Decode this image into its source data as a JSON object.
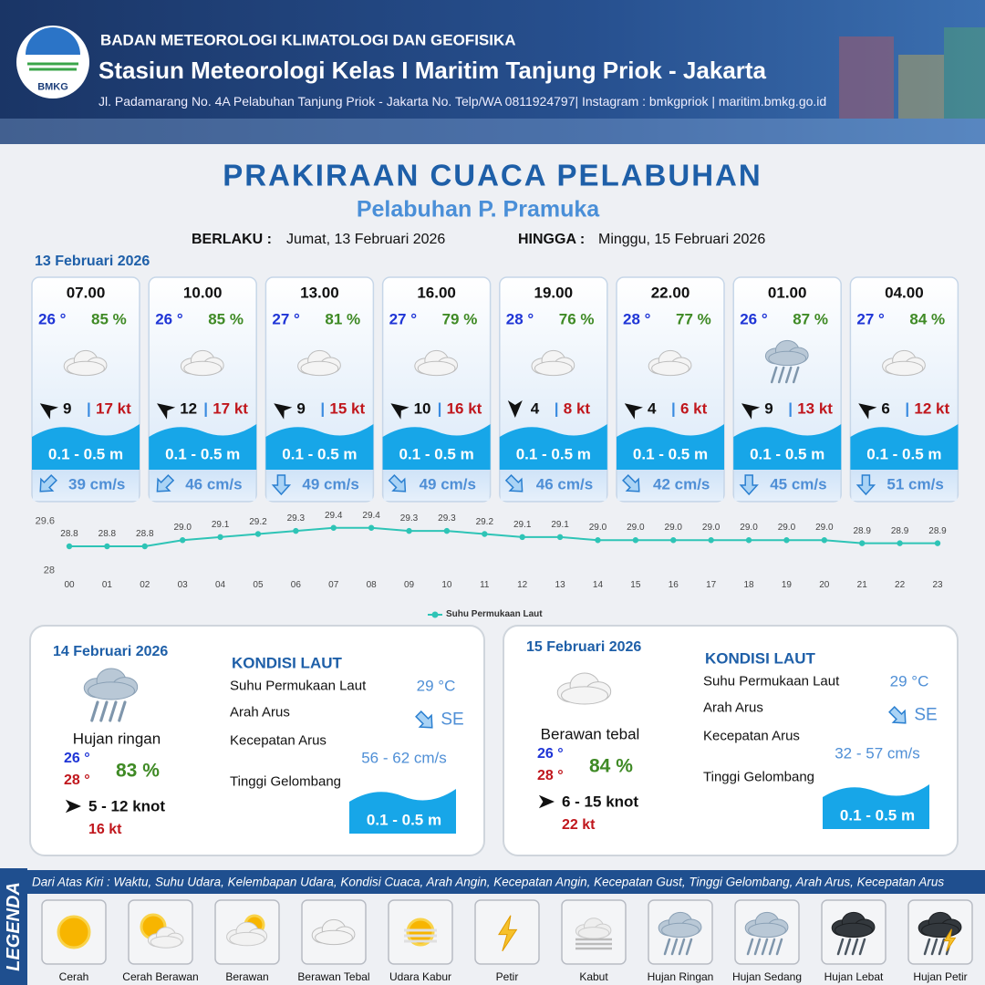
{
  "header": {
    "logo_text": "BMKG",
    "agency": "BADAN METEOROLOGI KLIMATOLOGI DAN GEOFISIKA",
    "station": "Stasiun Meteorologi Kelas I Maritim Tanjung Priok - Jakarta",
    "address": "Jl. Padamarang No. 4A Pelabuhan Tanjung Priok - Jakarta No. Telp/WA 0811924797| Instagram : bmkgpriok | maritim.bmkg.go.id"
  },
  "title": "PRAKIRAAN CUACA PELABUHAN",
  "subtitle": "Pelabuhan P. Pramuka",
  "validity": {
    "from_label": "BERLAKU :",
    "from": "Jumat, 13 Februari 2026",
    "to_label": "HINGGA :",
    "to": "Minggu, 15 Februari 2026"
  },
  "today": {
    "date": "13 Februari 2026",
    "separator": "|",
    "forecasts": [
      {
        "time": "07.00",
        "temperature": "26 °",
        "humidity": "85 %",
        "icon": 3,
        "wind_direction": -145,
        "wind_speed": "9",
        "gust": "17 kt",
        "wave": "0.1 - 0.5 m",
        "current_direction": 45,
        "current_speed": "39 cm/s"
      },
      {
        "time": "10.00",
        "temperature": "26 °",
        "humidity": "85 %",
        "icon": 3,
        "wind_direction": -145,
        "wind_speed": "12",
        "gust": "17 kt",
        "wave": "0.1 - 0.5 m",
        "current_direction": 45,
        "current_speed": "46 cm/s"
      },
      {
        "time": "13.00",
        "temperature": "27 °",
        "humidity": "81 %",
        "icon": 3,
        "wind_direction": -145,
        "wind_speed": "9",
        "gust": "15 kt",
        "wave": "0.1 - 0.5 m",
        "current_direction": 0,
        "current_speed": "49 cm/s"
      },
      {
        "time": "16.00",
        "temperature": "27 °",
        "humidity": "79 %",
        "icon": 3,
        "wind_direction": -145,
        "wind_speed": "10",
        "gust": "16 kt",
        "wave": "0.1 - 0.5 m",
        "current_direction": -45,
        "current_speed": "49 cm/s"
      },
      {
        "time": "19.00",
        "temperature": "28 °",
        "humidity": "76 %",
        "icon": 3,
        "wind_direction": 90,
        "wind_speed": "4",
        "gust": "8 kt",
        "wave": "0.1 - 0.5 m",
        "current_direction": -45,
        "current_speed": "46 cm/s"
      },
      {
        "time": "22.00",
        "temperature": "28 °",
        "humidity": "77 %",
        "icon": 3,
        "wind_direction": -145,
        "wind_speed": "4",
        "gust": "6 kt",
        "wave": "0.1 - 0.5 m",
        "current_direction": -45,
        "current_speed": "42 cm/s"
      },
      {
        "time": "01.00",
        "temperature": "26 °",
        "humidity": "87 %",
        "icon": 7,
        "wind_direction": -145,
        "wind_speed": "9",
        "gust": "13 kt",
        "wave": "0.1 - 0.5 m",
        "current_direction": 0,
        "current_speed": "45 cm/s"
      },
      {
        "time": "04.00",
        "temperature": "27 °",
        "humidity": "84 %",
        "icon": 3,
        "wind_direction": -145,
        "wind_speed": "6",
        "gust": "12 kt",
        "wave": "0.1 - 0.5 m",
        "current_direction": 0,
        "current_speed": "51 cm/s"
      }
    ]
  },
  "chart_data": {
    "type": "line",
    "categories": [
      "00",
      "01",
      "02",
      "03",
      "04",
      "05",
      "06",
      "07",
      "08",
      "09",
      "10",
      "11",
      "12",
      "13",
      "14",
      "15",
      "16",
      "17",
      "18",
      "19",
      "20",
      "21",
      "22",
      "23"
    ],
    "series": [
      {
        "name": "Suhu Permukaan Laut",
        "color": "#2ec4b6",
        "values": [
          28.8,
          28.8,
          28.8,
          29.0,
          29.1,
          29.2,
          29.3,
          29.4,
          29.4,
          29.3,
          29.3,
          29.2,
          29.1,
          29.1,
          29.0,
          29.0,
          29.0,
          29.0,
          29.0,
          29.0,
          29.0,
          28.9,
          28.9,
          28.9
        ],
        "value_labels": [
          "28.8",
          "28.8",
          "28.8",
          "29.0",
          "29.1",
          "29.2",
          "29.3",
          "29.4",
          "29.4",
          "29.3",
          "29.3",
          "29.2",
          "29.1",
          "29.1",
          "29.0",
          "29.0",
          "29.0",
          "29.0",
          "29.0",
          "29.0",
          "29.0",
          "28.9",
          "28.9",
          "28.9"
        ]
      }
    ],
    "ylim": [
      28,
      29.6
    ],
    "yticks": [
      28,
      29.6
    ],
    "grid": false,
    "legend": "bottom"
  },
  "days": [
    {
      "date": "14 Februari 2026",
      "icon": 7,
      "condition": "Hujan ringan",
      "temp_min": "26 °",
      "temp_max": "28 °",
      "humidity": "83 %",
      "wind_direction": 0,
      "wind": "5  - 12 knot",
      "gust": "16 kt",
      "current_direction": -45,
      "sea": {
        "title": "KONDISI LAUT",
        "rows": [
          {
            "label": "Suhu Permukaan Laut",
            "value": "29 °C"
          },
          {
            "label": "Arah Arus",
            "value": "SE"
          },
          {
            "label": "Kecepatan Arus",
            "value": "56  - 62 cm/s"
          },
          {
            "label": "Tinggi Gelombang",
            "value": "0.1 - 0.5 m"
          }
        ]
      }
    },
    {
      "date": "15 Februari 2026",
      "icon": 3,
      "condition": "Berawan tebal",
      "temp_min": "26 °",
      "temp_max": "28 °",
      "humidity": "84 %",
      "wind_direction": 0,
      "wind": "6  - 15 knot",
      "gust": "22 kt",
      "current_direction": -45,
      "sea": {
        "title": "KONDISI LAUT",
        "rows": [
          {
            "label": "Suhu Permukaan Laut",
            "value": "29 °C"
          },
          {
            "label": "Arah Arus",
            "value": "SE"
          },
          {
            "label": "Kecepatan Arus",
            "value": "32  - 57 cm/s"
          },
          {
            "label": "Tinggi Gelombang",
            "value": "0.1 - 0.5 m"
          }
        ]
      }
    }
  ],
  "legend": {
    "title": "LEGENDA",
    "description": "Dari Atas Kiri : Waktu, Suhu Udara, Kelembapan Udara, Kondisi Cuaca, Arah Angin, Kecepatan Angin, Kecepatan Gust, Tinggi Gelombang, Arah Arus, Kecepatan Arus",
    "items": [
      "Cerah",
      "Cerah Berawan",
      "Berawan",
      "Berawan Tebal",
      "Udara Kabur",
      "Petir",
      "Kabut",
      "Hujan Ringan",
      "Hujan Sedang",
      "Hujan Lebat",
      "Hujan Petir"
    ]
  }
}
